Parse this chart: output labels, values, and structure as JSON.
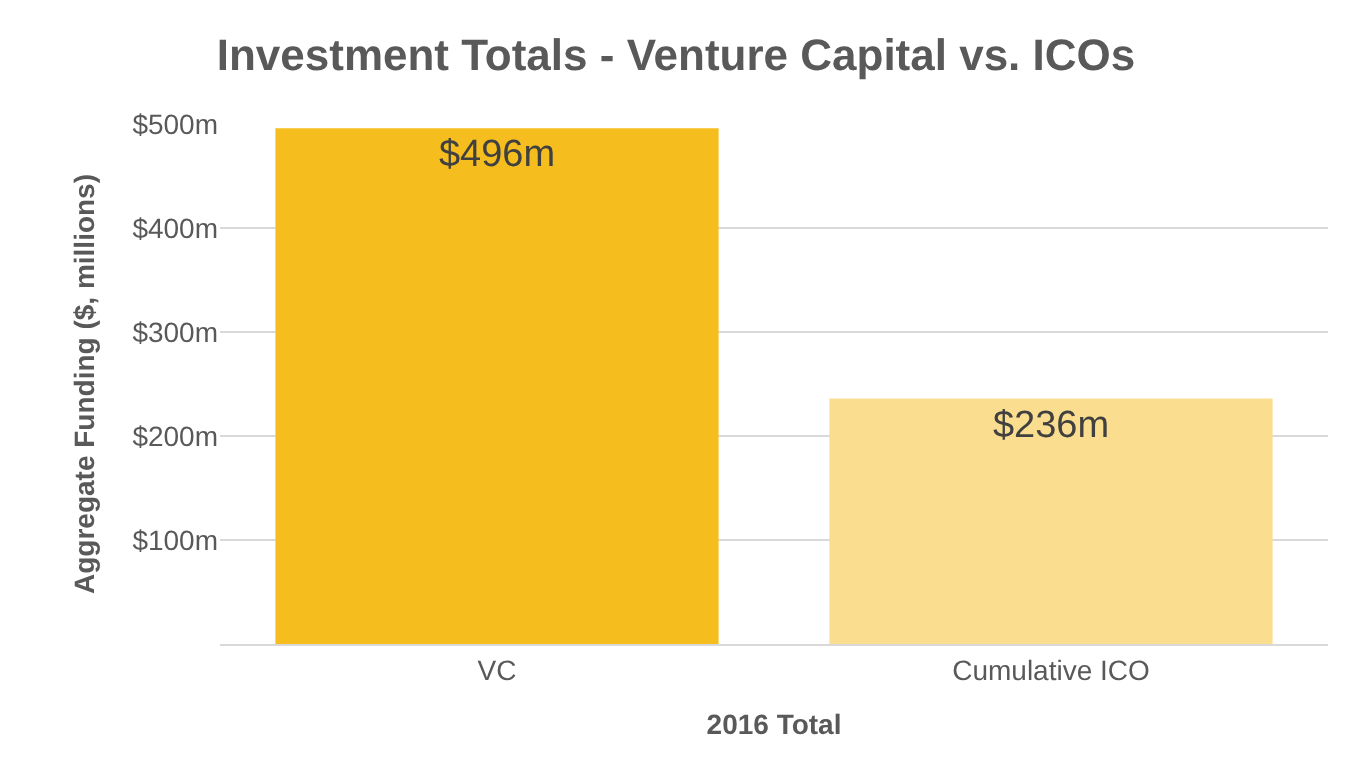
{
  "chart_data": {
    "type": "bar",
    "title": "Investment Totals - Venture Capital vs. ICOs",
    "xlabel": "2016 Total",
    "ylabel": "Aggregate Funding ($, millions)",
    "categories": [
      "VC",
      "Cumulative ICO"
    ],
    "values": [
      496,
      236
    ],
    "colors": [
      "#f5be1e",
      "#fadd8e"
    ],
    "value_labels": [
      "$496m",
      "$236m"
    ],
    "ylim": [
      0,
      500
    ],
    "yticks": [
      {
        "value": 0,
        "label": null
      },
      {
        "value": 100,
        "label": "$100m"
      },
      {
        "value": 200,
        "label": "$200m"
      },
      {
        "value": 300,
        "label": "$300m"
      },
      {
        "value": 400,
        "label": "$400m"
      },
      {
        "value": 500,
        "label": "$500m"
      }
    ],
    "grid": "y",
    "legend": false
  }
}
